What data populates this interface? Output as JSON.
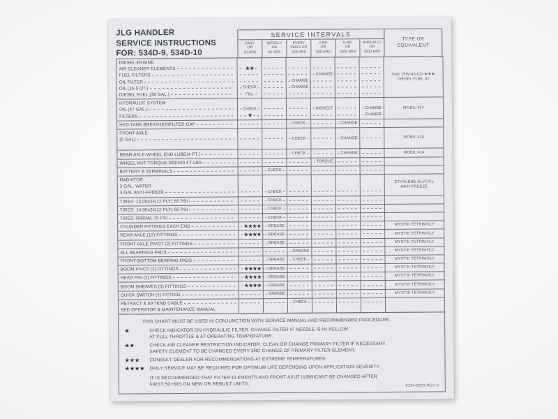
{
  "label": {
    "title_lines": [
      "JLG HANDLER",
      "SERVICE INSTRUCTIONS",
      "FOR: 534D-9, 534D-10"
    ],
    "intervals_title": "SERVICE INTERVALS",
    "type_header_lines": [
      "TYPE OR",
      "EQUIVALENT"
    ],
    "columns": [
      {
        "key": "daily",
        "lines": [
          "DAILY",
          "OR",
          "10 HRS"
        ]
      },
      {
        "key": "weekly",
        "lines": [
          "WEEKLY",
          "OR",
          "50 HRS"
        ]
      },
      {
        "key": "every",
        "lines": [
          "EVERY",
          "5WKS OR",
          "250 HRS"
        ]
      },
      {
        "key": "mo3",
        "lines": [
          "3 MO",
          "OR",
          "500 HRS"
        ]
      },
      {
        "key": "mo6",
        "lines": [
          "6 MO",
          "OR",
          "1000 HRS"
        ]
      },
      {
        "key": "annually",
        "lines": [
          "ANNUALLY",
          "OR",
          "1500 HRS"
        ]
      }
    ],
    "groups": [
      {
        "lines": [
          {
            "label": "DIESEL ENGINE",
            "header": true
          },
          {
            "label": "AIR CLEANER ELEMENTS",
            "dashes": true,
            "cells": {
              "daily": "★★"
            }
          },
          {
            "label": "FUEL FILTERS",
            "dashes": true,
            "cells": {
              "mo3": "CHANGE"
            }
          },
          {
            "label": "OIL FILTER",
            "dashes": true,
            "cells": {
              "every": "CHANGE"
            }
          },
          {
            "label": "OIL (15.5 QT.)",
            "dashes": true,
            "cells": {
              "daily": "CHECK",
              "every": "CHANGE"
            }
          },
          {
            "label": "DIESEL FUEL (38 GAL.)",
            "dashes": true,
            "cells": {
              "daily": "FILL"
            }
          }
        ],
        "type_lines": [
          "SAE 15W-40-CD ★★★",
          "DIESEL FUEL #2"
        ]
      },
      {
        "lines": [
          {
            "label": "HYDRAULIC SYSTEM",
            "header": true
          },
          {
            "label": "OIL (47 GAL.)",
            "dashes": true,
            "cells": {
              "daily": "CHECK",
              "mo3": "INSPECT",
              "annually": "CHANGE"
            }
          },
          {
            "label": "FILTERS",
            "dashes": true,
            "cells": {
              "daily": "★",
              "annually": "CHANGE"
            }
          }
        ],
        "type_lines": [
          "MOBIL 424"
        ]
      },
      {
        "lines": [
          {
            "label": "HYD.TANK BREATHER/FILTER CAP",
            "dashes": true,
            "cells": {
              "every": "CHECK",
              "mo6": "CHANGE"
            }
          }
        ]
      },
      {
        "lines": [
          {
            "label": "FRONT AXLE",
            "header": true
          },
          {
            "label": "(5 GAL)",
            "dashes": true,
            "cells": {
              "every": "CHECK",
              "mo6": "CHANGE"
            }
          },
          {
            "label": "",
            "header": true
          }
        ],
        "type_lines": [
          "MOBIL 424"
        ]
      },
      {
        "lines": [
          {
            "label": "REAR AXLE WHEEL END LUBE(4 PT.)",
            "dashes": true,
            "cells": {
              "every": "CHECK",
              "mo6": "CHANGE"
            }
          }
        ],
        "type_lines": [
          "MOBIL 424"
        ]
      },
      {
        "lines": [
          {
            "label": "WHEEL NUT TORQUE-350/400 FT-LBS",
            "dashes": true,
            "cells": {
              "mo3": "TORQUE"
            }
          }
        ]
      },
      {
        "lines": [
          {
            "label": "BATTERY & TERMINALS",
            "dashes": true,
            "cells": {
              "weekly": "CHECK"
            }
          }
        ]
      },
      {
        "lines": [
          {
            "label": "RADIATOR",
            "header": true
          },
          {
            "label": "3 GAL. WATER",
            "header": true
          },
          {
            "label": "3 GAL ANTI-FREEZE",
            "dashes": true,
            "cells": {
              "weekly": "CHECK"
            }
          }
        ],
        "type_lines": [
          "ETHYLENE GLYCOL",
          "ANTI-FREEZE"
        ]
      },
      {
        "lines": [
          {
            "label": "TIRES: 13.00x24(12 PLY) 65 PSI",
            "dashes": true,
            "cells": {
              "weekly": "CHECK"
            }
          }
        ]
      },
      {
        "lines": [
          {
            "label": "TIRES: 14.00x24(12 PLY) 65 PSI",
            "dashes": true,
            "cells": {
              "weekly": "CHECK"
            }
          }
        ]
      },
      {
        "lines": [
          {
            "label": "TIRES: RADIAL 70 PSI",
            "dashes": true,
            "cells": {
              "weekly": "CHECK"
            }
          }
        ]
      },
      {
        "lines": [
          {
            "label": "CYLINDER FITTINGS EACH END",
            "dashes": true,
            "cells": {
              "daily": "★★★★",
              "weekly": "GREASE"
            }
          }
        ],
        "type_lines": [
          "MYSTIK TETRIMOLY"
        ]
      },
      {
        "lines": [
          {
            "label": "REAR AXLE (12) FITTINGS",
            "dashes": true,
            "cells": {
              "daily": "★★★★",
              "weekly": "GREASE"
            }
          }
        ],
        "type_lines": [
          "MYSTIK TETRIMOLY"
        ]
      },
      {
        "lines": [
          {
            "label": "FRONT AXLE PIVOT (2) FITTINGS",
            "dashes": true,
            "cells": {
              "weekly": "GREASE"
            }
          }
        ],
        "type_lines": [
          "MYSTIK TETRIMOLY"
        ]
      },
      {
        "lines": [
          {
            "label": "ALL BEARINGS PADS",
            "dashes": true,
            "cells": {
              "every": "GREASE"
            }
          }
        ],
        "type_lines": [
          "MYSTIK TETRIMOLY"
        ]
      },
      {
        "lines": [
          {
            "label": "FRONT BOTTOM BEARING PADS",
            "dashes": true,
            "cells": {
              "weekly": "GREASE",
              "every": "CHECK"
            }
          }
        ],
        "type_lines": [
          "MYSTIK TETRIMOLY"
        ]
      },
      {
        "lines": [
          {
            "label": "BOOM PIVOT (2) FITTINGS",
            "dashes": true,
            "cells": {
              "daily": "★★★★",
              "weekly": "GREASE"
            }
          }
        ],
        "type_lines": [
          "MYSTIK TETRIMOLY"
        ]
      },
      {
        "lines": [
          {
            "label": "HEAD PIN (2) FITTINGS",
            "dashes": true,
            "cells": {
              "daily": "★★★★",
              "weekly": "GREASE"
            }
          }
        ],
        "type_lines": [
          "MYSTIK TETRIMOLY"
        ]
      },
      {
        "lines": [
          {
            "label": "BOOM SHEAVES (3) FITTINGS",
            "dashes": true,
            "cells": {
              "daily": "★★★★",
              "weekly": "GREASE"
            }
          }
        ],
        "type_lines": [
          "MYSTIK TETRIMOLY"
        ]
      },
      {
        "lines": [
          {
            "label": "QUICK SWITCH (1) FITTING",
            "dashes": true,
            "cells": {
              "weekly": "GREASE"
            }
          }
        ],
        "type_lines": [
          "MYSTIK TETRIMOLY"
        ]
      },
      {
        "lines": [
          {
            "label": "RETRACT & EXTEND CABLE",
            "dashes": true,
            "cells": {
              "every": "CHECK"
            }
          },
          {
            "label": "SEE OPERATOR & MAINTENANCE MANUAL",
            "header": true
          }
        ]
      }
    ],
    "footnotes": {
      "intro": "THIS CHART MUST BE USED IN CONJUNCTION WITH SERVICE MANUAL AND RECOMMENDED PROCEDURE.",
      "notes": [
        {
          "stars": "★",
          "lines": [
            "CHECK INDICATOR ON HYDRAULIC FILTER. CHANGE FILTER IF NEEDLE IS IN YELLOW",
            "AT FULL THROTTLE & AT OPERATING TEMPERATURE."
          ]
        },
        {
          "stars": "★★",
          "lines": [
            "CHECK AIR CLEANER RESTRICTION INDICATOR. CLEAN OR CHANGE PRIMARY FILTER IF NECESSARY.",
            "SAFETY ELEMENT TO BE CHANGED EVERY 3RD CHANGE OF PRIMARY FILTER ELEMENT."
          ]
        },
        {
          "stars": "★★★",
          "lines": [
            "CONSULT DEALER FOR RECOMMENDATIONS AT EXTREME TEMPERATURES."
          ]
        },
        {
          "stars": "★★★★",
          "lines": [
            "DAILY SERVICE MAY BE REQUIRED FOR OPTIMUM LIFE DEPENDING UPON APPLICATION SEVERITY."
          ]
        }
      ],
      "closing_lines": [
        "IT IS RECOMMENDED THAT FILTER ELEMENTS AND FRONT AXLE LUBRICANT BE CHANGED AFTER",
        "FIRST 50 HRS ON NEW OR REBUILT UNITS."
      ],
      "part_number": "9134-3073 REV C"
    },
    "colors": {
      "label_bg": "#e8e9ed",
      "line": "#6d7079",
      "text": "#494c56"
    }
  }
}
